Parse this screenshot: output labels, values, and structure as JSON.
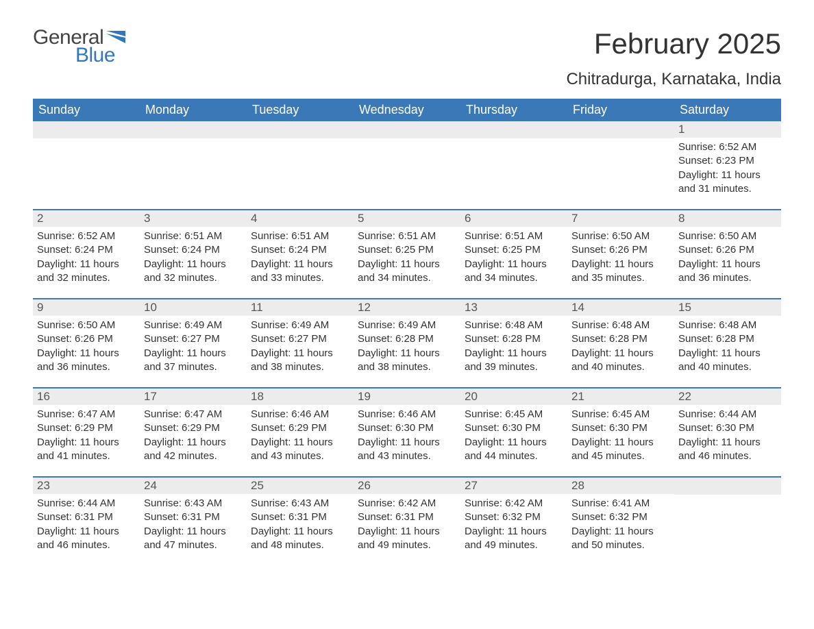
{
  "brand": {
    "general": "General",
    "blue": "Blue",
    "flag_color": "#2f78bd"
  },
  "title": "February 2025",
  "subtitle": "Chitradurga, Karnataka, India",
  "colors": {
    "header_bg": "#3a78b8",
    "header_text": "#ffffff",
    "daynum_bg": "#ececec",
    "week_border": "#3a78b8",
    "text": "#333333",
    "background": "#ffffff"
  },
  "typography": {
    "title_fontsize": 42,
    "subtitle_fontsize": 24,
    "weekday_fontsize": 18,
    "daynum_fontsize": 17,
    "body_fontsize": 15,
    "font_family": "Segoe UI"
  },
  "weekdays": [
    "Sunday",
    "Monday",
    "Tuesday",
    "Wednesday",
    "Thursday",
    "Friday",
    "Saturday"
  ],
  "weeks": [
    [
      null,
      null,
      null,
      null,
      null,
      null,
      {
        "n": "1",
        "sunrise": "Sunrise: 6:52 AM",
        "sunset": "Sunset: 6:23 PM",
        "dl1": "Daylight: 11 hours",
        "dl2": "and 31 minutes."
      }
    ],
    [
      {
        "n": "2",
        "sunrise": "Sunrise: 6:52 AM",
        "sunset": "Sunset: 6:24 PM",
        "dl1": "Daylight: 11 hours",
        "dl2": "and 32 minutes."
      },
      {
        "n": "3",
        "sunrise": "Sunrise: 6:51 AM",
        "sunset": "Sunset: 6:24 PM",
        "dl1": "Daylight: 11 hours",
        "dl2": "and 32 minutes."
      },
      {
        "n": "4",
        "sunrise": "Sunrise: 6:51 AM",
        "sunset": "Sunset: 6:24 PM",
        "dl1": "Daylight: 11 hours",
        "dl2": "and 33 minutes."
      },
      {
        "n": "5",
        "sunrise": "Sunrise: 6:51 AM",
        "sunset": "Sunset: 6:25 PM",
        "dl1": "Daylight: 11 hours",
        "dl2": "and 34 minutes."
      },
      {
        "n": "6",
        "sunrise": "Sunrise: 6:51 AM",
        "sunset": "Sunset: 6:25 PM",
        "dl1": "Daylight: 11 hours",
        "dl2": "and 34 minutes."
      },
      {
        "n": "7",
        "sunrise": "Sunrise: 6:50 AM",
        "sunset": "Sunset: 6:26 PM",
        "dl1": "Daylight: 11 hours",
        "dl2": "and 35 minutes."
      },
      {
        "n": "8",
        "sunrise": "Sunrise: 6:50 AM",
        "sunset": "Sunset: 6:26 PM",
        "dl1": "Daylight: 11 hours",
        "dl2": "and 36 minutes."
      }
    ],
    [
      {
        "n": "9",
        "sunrise": "Sunrise: 6:50 AM",
        "sunset": "Sunset: 6:26 PM",
        "dl1": "Daylight: 11 hours",
        "dl2": "and 36 minutes."
      },
      {
        "n": "10",
        "sunrise": "Sunrise: 6:49 AM",
        "sunset": "Sunset: 6:27 PM",
        "dl1": "Daylight: 11 hours",
        "dl2": "and 37 minutes."
      },
      {
        "n": "11",
        "sunrise": "Sunrise: 6:49 AM",
        "sunset": "Sunset: 6:27 PM",
        "dl1": "Daylight: 11 hours",
        "dl2": "and 38 minutes."
      },
      {
        "n": "12",
        "sunrise": "Sunrise: 6:49 AM",
        "sunset": "Sunset: 6:28 PM",
        "dl1": "Daylight: 11 hours",
        "dl2": "and 38 minutes."
      },
      {
        "n": "13",
        "sunrise": "Sunrise: 6:48 AM",
        "sunset": "Sunset: 6:28 PM",
        "dl1": "Daylight: 11 hours",
        "dl2": "and 39 minutes."
      },
      {
        "n": "14",
        "sunrise": "Sunrise: 6:48 AM",
        "sunset": "Sunset: 6:28 PM",
        "dl1": "Daylight: 11 hours",
        "dl2": "and 40 minutes."
      },
      {
        "n": "15",
        "sunrise": "Sunrise: 6:48 AM",
        "sunset": "Sunset: 6:28 PM",
        "dl1": "Daylight: 11 hours",
        "dl2": "and 40 minutes."
      }
    ],
    [
      {
        "n": "16",
        "sunrise": "Sunrise: 6:47 AM",
        "sunset": "Sunset: 6:29 PM",
        "dl1": "Daylight: 11 hours",
        "dl2": "and 41 minutes."
      },
      {
        "n": "17",
        "sunrise": "Sunrise: 6:47 AM",
        "sunset": "Sunset: 6:29 PM",
        "dl1": "Daylight: 11 hours",
        "dl2": "and 42 minutes."
      },
      {
        "n": "18",
        "sunrise": "Sunrise: 6:46 AM",
        "sunset": "Sunset: 6:29 PM",
        "dl1": "Daylight: 11 hours",
        "dl2": "and 43 minutes."
      },
      {
        "n": "19",
        "sunrise": "Sunrise: 6:46 AM",
        "sunset": "Sunset: 6:30 PM",
        "dl1": "Daylight: 11 hours",
        "dl2": "and 43 minutes."
      },
      {
        "n": "20",
        "sunrise": "Sunrise: 6:45 AM",
        "sunset": "Sunset: 6:30 PM",
        "dl1": "Daylight: 11 hours",
        "dl2": "and 44 minutes."
      },
      {
        "n": "21",
        "sunrise": "Sunrise: 6:45 AM",
        "sunset": "Sunset: 6:30 PM",
        "dl1": "Daylight: 11 hours",
        "dl2": "and 45 minutes."
      },
      {
        "n": "22",
        "sunrise": "Sunrise: 6:44 AM",
        "sunset": "Sunset: 6:30 PM",
        "dl1": "Daylight: 11 hours",
        "dl2": "and 46 minutes."
      }
    ],
    [
      {
        "n": "23",
        "sunrise": "Sunrise: 6:44 AM",
        "sunset": "Sunset: 6:31 PM",
        "dl1": "Daylight: 11 hours",
        "dl2": "and 46 minutes."
      },
      {
        "n": "24",
        "sunrise": "Sunrise: 6:43 AM",
        "sunset": "Sunset: 6:31 PM",
        "dl1": "Daylight: 11 hours",
        "dl2": "and 47 minutes."
      },
      {
        "n": "25",
        "sunrise": "Sunrise: 6:43 AM",
        "sunset": "Sunset: 6:31 PM",
        "dl1": "Daylight: 11 hours",
        "dl2": "and 48 minutes."
      },
      {
        "n": "26",
        "sunrise": "Sunrise: 6:42 AM",
        "sunset": "Sunset: 6:31 PM",
        "dl1": "Daylight: 11 hours",
        "dl2": "and 49 minutes."
      },
      {
        "n": "27",
        "sunrise": "Sunrise: 6:42 AM",
        "sunset": "Sunset: 6:32 PM",
        "dl1": "Daylight: 11 hours",
        "dl2": "and 49 minutes."
      },
      {
        "n": "28",
        "sunrise": "Sunrise: 6:41 AM",
        "sunset": "Sunset: 6:32 PM",
        "dl1": "Daylight: 11 hours",
        "dl2": "and 50 minutes."
      },
      null
    ]
  ]
}
